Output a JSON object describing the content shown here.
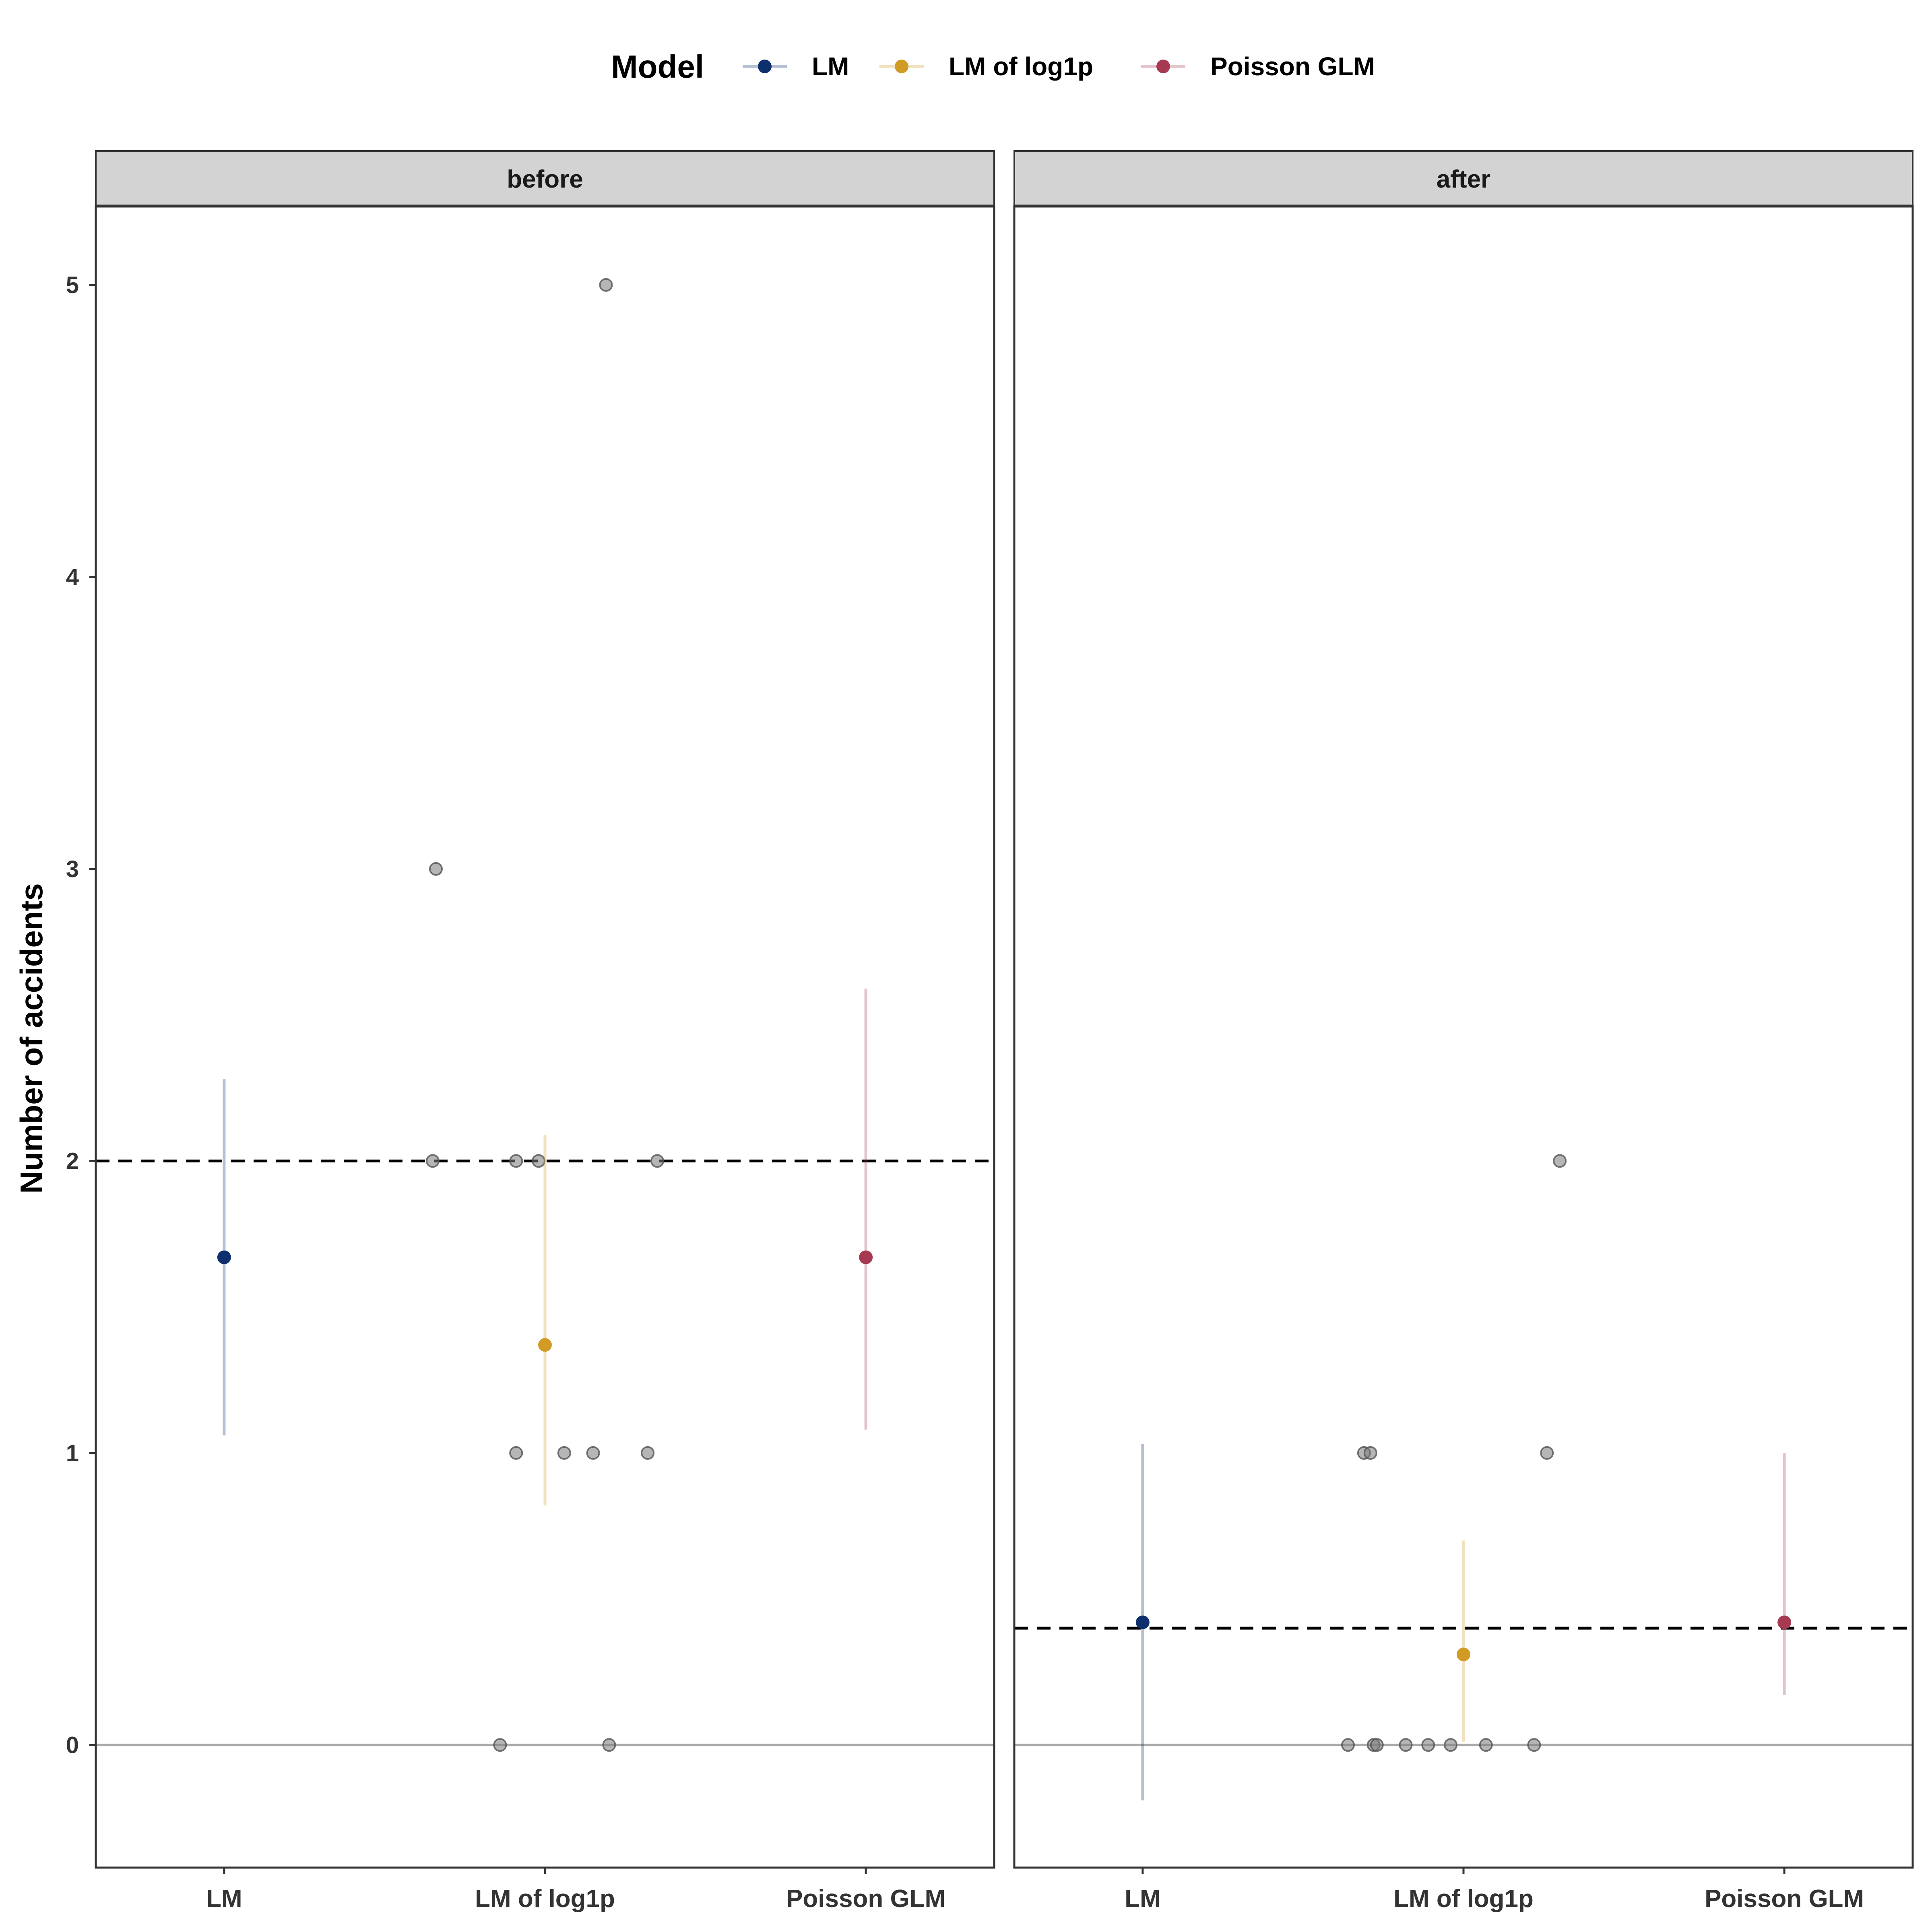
{
  "chart_data": {
    "type": "scatter",
    "ylabel": "Number of accidents",
    "ylim": [
      -0.42,
      5.27
    ],
    "yticks": [
      0,
      1,
      2,
      3,
      4,
      5
    ],
    "categories": [
      "LM",
      "LM of log1p",
      "Poisson GLM"
    ],
    "legend": {
      "title": "Model",
      "position": "top"
    },
    "colors": {
      "LM": "#0d2f6e",
      "LM of log1p": "#d19b26",
      "Poisson GLM": "#a73a52",
      "raw_points": "#7a7a7a",
      "reference_line": "#000000",
      "zero_line": "#aaaaaa"
    },
    "panels": [
      {
        "name": "before",
        "mean_line": 2.0,
        "estimates": [
          {
            "model": "LM",
            "estimate": 1.67,
            "lower": 1.06,
            "upper": 2.28
          },
          {
            "model": "LM of log1p",
            "estimate": 1.37,
            "lower": 0.82,
            "upper": 2.09
          },
          {
            "model": "Poisson GLM",
            "estimate": 1.67,
            "lower": 1.08,
            "upper": 2.59
          }
        ],
        "raw_points": [
          {
            "x": 0.66,
            "y": 3
          },
          {
            "x": 0.65,
            "y": 2
          },
          {
            "x": 0.91,
            "y": 2
          },
          {
            "x": 0.98,
            "y": 2
          },
          {
            "x": 1.35,
            "y": 2
          },
          {
            "x": 1.19,
            "y": 5
          },
          {
            "x": 0.91,
            "y": 1
          },
          {
            "x": 1.06,
            "y": 1
          },
          {
            "x": 1.15,
            "y": 1
          },
          {
            "x": 1.32,
            "y": 1
          },
          {
            "x": 0.86,
            "y": 0
          },
          {
            "x": 1.2,
            "y": 0
          }
        ]
      },
      {
        "name": "after",
        "mean_line": 0.4,
        "estimates": [
          {
            "model": "LM",
            "estimate": 0.42,
            "lower": -0.19,
            "upper": 1.03
          },
          {
            "model": "LM of log1p",
            "estimate": 0.31,
            "lower": 0.01,
            "upper": 0.7
          },
          {
            "model": "Poisson GLM",
            "estimate": 0.42,
            "lower": 0.17,
            "upper": 1.0
          }
        ],
        "raw_points": [
          {
            "x": 0.69,
            "y": 1
          },
          {
            "x": 0.71,
            "y": 1
          },
          {
            "x": 1.26,
            "y": 1
          },
          {
            "x": 1.3,
            "y": 2
          },
          {
            "x": 0.64,
            "y": 0
          },
          {
            "x": 0.72,
            "y": 0
          },
          {
            "x": 0.73,
            "y": 0
          },
          {
            "x": 0.82,
            "y": 0
          },
          {
            "x": 0.89,
            "y": 0
          },
          {
            "x": 0.96,
            "y": 0
          },
          {
            "x": 1.07,
            "y": 0
          },
          {
            "x": 1.22,
            "y": 0
          }
        ]
      }
    ]
  }
}
